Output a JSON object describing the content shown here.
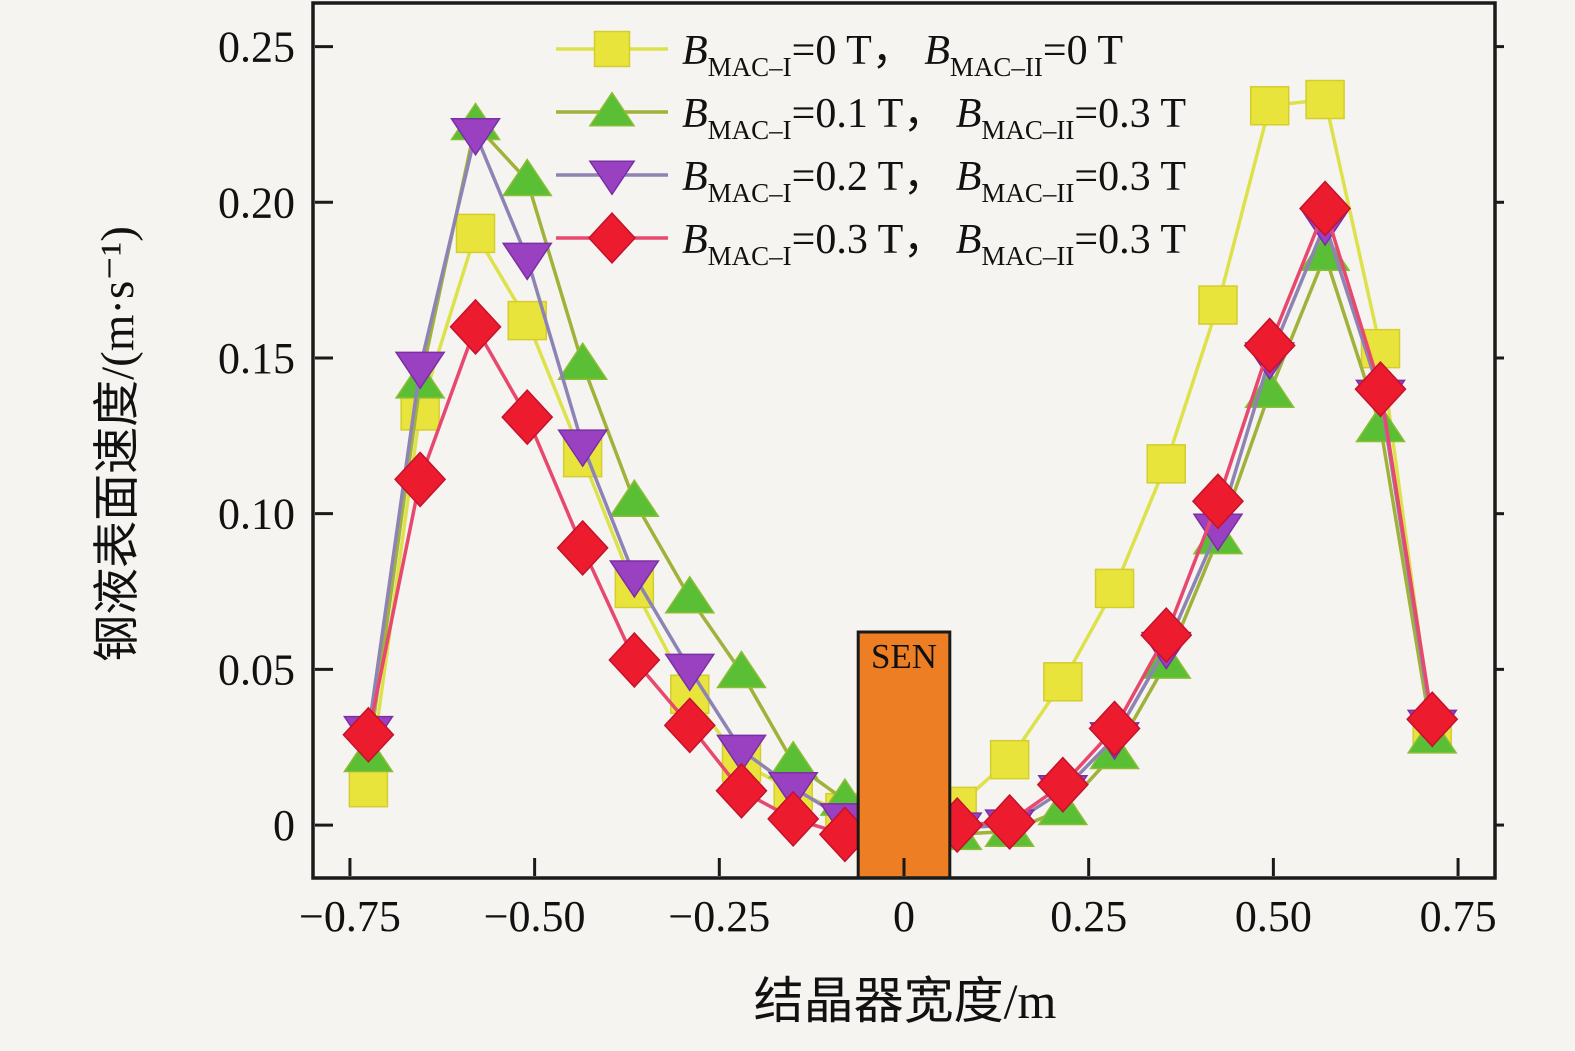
{
  "figure": {
    "background": "#f5f4f1",
    "axis_color": "#1a1a1a"
  },
  "legend": {
    "items": [
      {
        "b1": "B",
        "sub1": "MAC–I",
        "val1": "=0 T， ",
        "b2": "B",
        "sub2": "MAC–II",
        "val2": "=0 T"
      },
      {
        "b1": "B",
        "sub1": "MAC–I",
        "val1": "=0.1 T， ",
        "b2": "B",
        "sub2": "MAC–II",
        "val2": "=0.3 T"
      },
      {
        "b1": "B",
        "sub1": "MAC–I",
        "val1": "=0.2 T， ",
        "b2": "B",
        "sub2": "MAC–II",
        "val2": "=0.3 T"
      },
      {
        "b1": "B",
        "sub1": "MAC–I",
        "val1": "=0.3 T， ",
        "b2": "B",
        "sub2": "MAC–II",
        "val2": "=0.3 T"
      }
    ]
  },
  "chart_data": {
    "type": "line",
    "title": "",
    "xlabel": "结晶器宽度/m",
    "ylabel": "钢液表面速度/(m·s⁻¹)",
    "xlim": [
      -0.8,
      0.8
    ],
    "ylim": [
      -0.017,
      0.264
    ],
    "grid": false,
    "legend_position": "top-center-inside",
    "xticks": {
      "values": [
        -0.75,
        -0.5,
        -0.25,
        0,
        0.25,
        0.5,
        0.75
      ],
      "labels": [
        "−0.75",
        "−0.50",
        "−0.25",
        "0",
        "0.25",
        "0.50",
        "0.75"
      ]
    },
    "yticks": {
      "values": [
        0,
        0.05,
        0.1,
        0.15,
        0.2,
        0.25
      ],
      "labels": [
        "0",
        "0.05",
        "0.10",
        "0.15",
        "0.20",
        "0.25"
      ]
    },
    "x": [
      -0.725,
      -0.655,
      -0.58,
      -0.51,
      -0.435,
      -0.365,
      -0.29,
      -0.22,
      -0.15,
      -0.08,
      0,
      0.072,
      0.143,
      0.215,
      0.285,
      0.355,
      0.425,
      0.495,
      0.57,
      0.645,
      0.715
    ],
    "series": [
      {
        "slug": "bmac1-0t-bmac2-0t",
        "label": "B_MAC-I=0 T, B_MAC-II=0 T",
        "marker": "square",
        "marker_color": "#e9e43c",
        "marker_edge": "#d3cd2e",
        "line_color": "#dde24b",
        "values": [
          0.012,
          0.133,
          0.19,
          0.162,
          0.118,
          0.076,
          0.042,
          0.02,
          0.011,
          0.004,
          -0.004,
          0.006,
          0.021,
          0.046,
          0.076,
          0.116,
          0.167,
          0.231,
          0.233,
          0.153,
          0.03
        ]
      },
      {
        "slug": "bmac1-01t-bmac2-03t",
        "label": "B_MAC-I=0.1 T, B_MAC-II=0.3 T",
        "marker": "triangle-up",
        "marker_color": "#5abf35",
        "marker_edge": "#8cbe34",
        "line_color": "#a0b23a",
        "values": [
          0.022,
          0.142,
          0.225,
          0.207,
          0.148,
          0.104,
          0.073,
          0.049,
          0.02,
          0.008,
          -0.006,
          -0.003,
          -0.002,
          0.005,
          0.023,
          0.052,
          0.092,
          0.139,
          0.183,
          0.128,
          0.028
        ]
      },
      {
        "slug": "bmac1-02t-bmac2-03t",
        "label": "B_MAC-I=0.2 T, B_MAC-II=0.3 T",
        "marker": "triangle-down",
        "marker_color": "#9a41c2",
        "marker_edge": "#7a2fa4",
        "line_color": "#8d84b5",
        "values": [
          0.03,
          0.147,
          0.222,
          0.182,
          0.122,
          0.08,
          0.05,
          0.024,
          0.012,
          0.002,
          -0.006,
          -0.001,
          0.0,
          0.011,
          0.028,
          0.057,
          0.095,
          0.15,
          0.193,
          0.138,
          0.032
        ]
      },
      {
        "slug": "bmac1-03t-bmac2-03t",
        "label": "B_MAC-I=0.3 T, B_MAC-II=0.3 T",
        "marker": "diamond",
        "marker_color": "#ec1b2e",
        "marker_edge": "#c4122c",
        "line_color": "#e8486e",
        "values": [
          0.029,
          0.111,
          0.16,
          0.131,
          0.089,
          0.053,
          0.032,
          0.011,
          0.002,
          -0.003,
          -0.005,
          0.0,
          0.001,
          0.013,
          0.031,
          0.061,
          0.104,
          0.154,
          0.198,
          0.14,
          0.034
        ]
      }
    ],
    "sen_box": {
      "label": "SEN",
      "x_range": [
        -0.062,
        0.062
      ],
      "y_top": 0.062,
      "fill": "#ee7e23",
      "border": "#1a1a1a"
    }
  }
}
